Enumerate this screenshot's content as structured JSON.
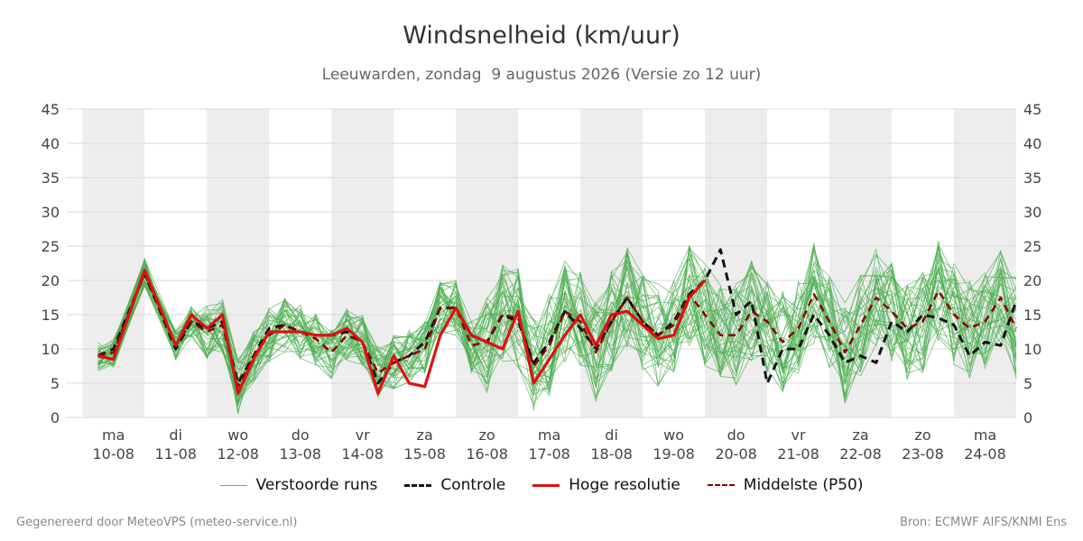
{
  "title": "Windsnelheid (km/uur)",
  "subtitle": "Leeuwarden, zondag  9 augustus 2026 (Versie zo 12 uur)",
  "legend": {
    "ensemble": "Verstoorde runs",
    "control": "Controle",
    "hres": "Hoge resolutie",
    "p50": "Middelste (P50)"
  },
  "footer": {
    "left": "Gegenereerd door MeteoVPS (meteo-service.nl)",
    "right": "Bron: ECMWF AIFS/KNMI Ens"
  },
  "colors": {
    "ensemble": "#4caf50",
    "control": "#111111",
    "hres": "#dd1111",
    "p50": "#8b0000",
    "band": "#ededed",
    "grid": "#d9d9d9"
  },
  "chart_data": {
    "type": "line",
    "ylim": [
      0,
      45
    ],
    "yticks": [
      0,
      5,
      10,
      15,
      20,
      25,
      30,
      35,
      40,
      45
    ],
    "x_range_days": [
      -0.75,
      14.5
    ],
    "x_ticks": [
      {
        "day": "ma",
        "date": "10-08"
      },
      {
        "day": "di",
        "date": "11-08"
      },
      {
        "day": "wo",
        "date": "12-08"
      },
      {
        "day": "do",
        "date": "13-08"
      },
      {
        "day": "vr",
        "date": "14-08"
      },
      {
        "day": "za",
        "date": "15-08"
      },
      {
        "day": "zo",
        "date": "16-08"
      },
      {
        "day": "ma",
        "date": "17-08"
      },
      {
        "day": "di",
        "date": "18-08"
      },
      {
        "day": "wo",
        "date": "19-08"
      },
      {
        "day": "do",
        "date": "20-08"
      },
      {
        "day": "vr",
        "date": "21-08"
      },
      {
        "day": "za",
        "date": "22-08"
      },
      {
        "day": "zo",
        "date": "23-08"
      },
      {
        "day": "ma",
        "date": "24-08"
      }
    ],
    "shaded_days": [
      0,
      2,
      4,
      6,
      8,
      10,
      12,
      14
    ],
    "series": [
      {
        "name": "Hoge resolutie",
        "x": [
          -0.25,
          0,
          0.5,
          1,
          1.25,
          1.5,
          1.75,
          2,
          2.25,
          2.5,
          2.75,
          3,
          3.25,
          3.5,
          3.75,
          4,
          4.25,
          4.5,
          4.75,
          5,
          5.25,
          5.5,
          5.75,
          6,
          6.25,
          6.5,
          6.75,
          7,
          7.25,
          7.5,
          7.75,
          8,
          8.25,
          8.5,
          8.75,
          9,
          9.25,
          9.5
        ],
        "y": [
          9,
          8.5,
          21.5,
          10.5,
          15,
          13,
          15,
          3.5,
          8.5,
          12.5,
          12.5,
          12.5,
          12,
          12,
          13,
          11,
          3.5,
          9,
          5,
          4.5,
          12,
          16,
          12,
          11,
          10,
          15.5,
          5,
          8.5,
          12,
          15,
          10.5,
          15,
          15.5,
          13.5,
          11.5,
          12,
          17.5,
          20
        ]
      },
      {
        "name": "Controle",
        "x": [
          -0.25,
          0,
          0.5,
          1,
          1.25,
          1.5,
          1.75,
          2,
          2.25,
          2.5,
          2.75,
          3,
          3.25,
          3.5,
          3.75,
          4,
          4.25,
          4.5,
          4.75,
          5,
          5.25,
          5.5,
          5.75,
          6,
          6.25,
          6.5,
          6.75,
          7,
          7.25,
          7.5,
          7.75,
          8,
          8.25,
          8.5,
          8.75,
          9,
          9.25,
          9.5,
          9.75,
          10,
          10.25,
          10.5,
          10.75,
          11,
          11.25,
          11.5,
          11.75,
          12,
          12.25,
          12.5,
          12.75,
          13,
          13.25,
          13.5,
          13.75,
          14,
          14.25,
          14.5
        ],
        "y": [
          9,
          10,
          21,
          10,
          14,
          13,
          14,
          5,
          9,
          13,
          13.5,
          12.5,
          12,
          12,
          12.5,
          11,
          5,
          8,
          9,
          11,
          16,
          16,
          12,
          11,
          15,
          14,
          8,
          11,
          15.5,
          13,
          10,
          14,
          17.5,
          14,
          12,
          14,
          18,
          20,
          24.5,
          15,
          17,
          5,
          10,
          10,
          15,
          12,
          8,
          9,
          8,
          14,
          12.5,
          15,
          14.5,
          13.5,
          9,
          11,
          10.5,
          17
        ]
      },
      {
        "name": "Middelste (P50)",
        "x": [
          -0.25,
          0,
          0.5,
          1,
          1.25,
          1.5,
          1.75,
          2,
          2.25,
          2.5,
          2.75,
          3,
          3.25,
          3.5,
          3.75,
          4,
          4.25,
          4.5,
          4.75,
          5,
          5.25,
          5.5,
          5.75,
          6,
          6.25,
          6.5,
          6.75,
          7,
          7.25,
          7.5,
          7.75,
          8,
          8.25,
          8.5,
          8.75,
          9,
          9.25,
          9.5,
          9.75,
          10,
          10.25,
          10.5,
          10.75,
          11,
          11.25,
          11.5,
          11.75,
          12,
          12.25,
          12.5,
          12.75,
          13,
          13.25,
          13.5,
          13.75,
          14,
          14.25,
          14.5
        ],
        "y": [
          9,
          9.5,
          21,
          10.5,
          14,
          12.5,
          13.5,
          4.5,
          9,
          12,
          13.5,
          12.5,
          11.5,
          9.5,
          12,
          11,
          6.5,
          8,
          9,
          10,
          16,
          16,
          10.5,
          11,
          15,
          14.5,
          7.5,
          10.5,
          15.5,
          14,
          9.5,
          14,
          17.5,
          14,
          12,
          13.5,
          18,
          15,
          12,
          12,
          15.5,
          14,
          11,
          13,
          18,
          14,
          9.5,
          13.5,
          17.5,
          15.5,
          13,
          14,
          18.5,
          15,
          13,
          14,
          17.5,
          13
        ]
      }
    ]
  }
}
